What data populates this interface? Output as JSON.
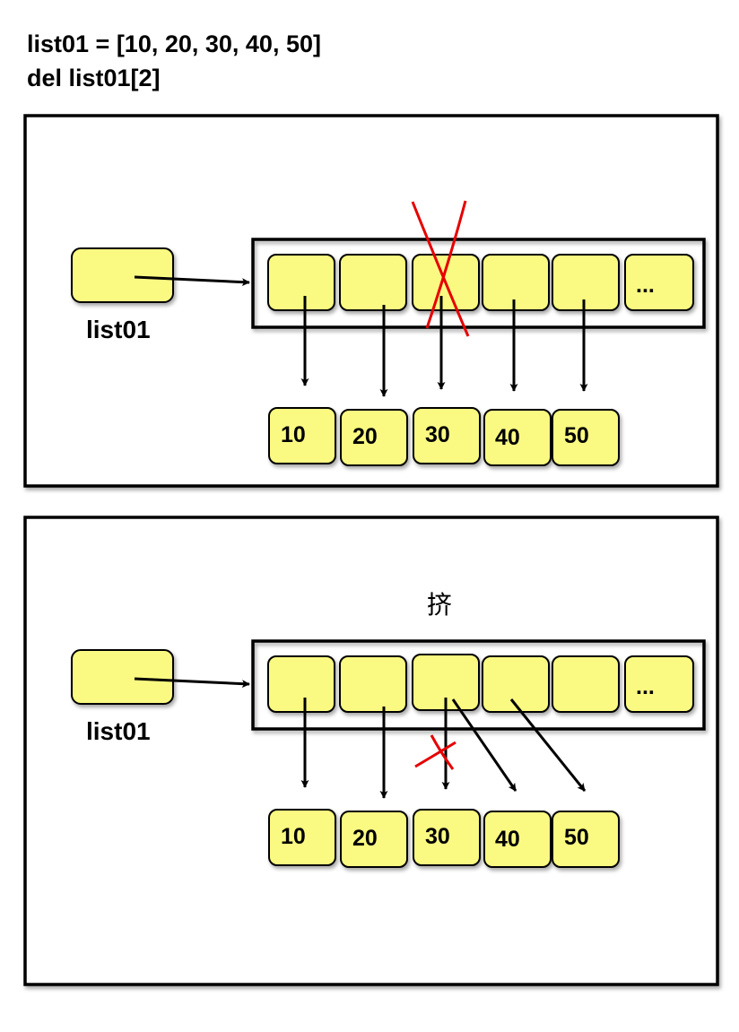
{
  "code": {
    "line1": "list01 = [10, 20, 30, 40, 50]",
    "line2": "del list01[2]"
  },
  "panels": [
    {
      "variable_label": "list01",
      "slot_last_label": "...",
      "values": [
        "10",
        "20",
        "30",
        "40",
        "50"
      ],
      "deleted_slot_index": 2,
      "note": ""
    },
    {
      "variable_label": "list01",
      "slot_last_label": "...",
      "values": [
        "10",
        "20",
        "30",
        "40",
        "50"
      ],
      "deleted_slot_index": 2,
      "note": "挤"
    }
  ],
  "colors": {
    "cell_fill": "#fafa82",
    "stroke": "#000000",
    "cross": "#e60000"
  }
}
